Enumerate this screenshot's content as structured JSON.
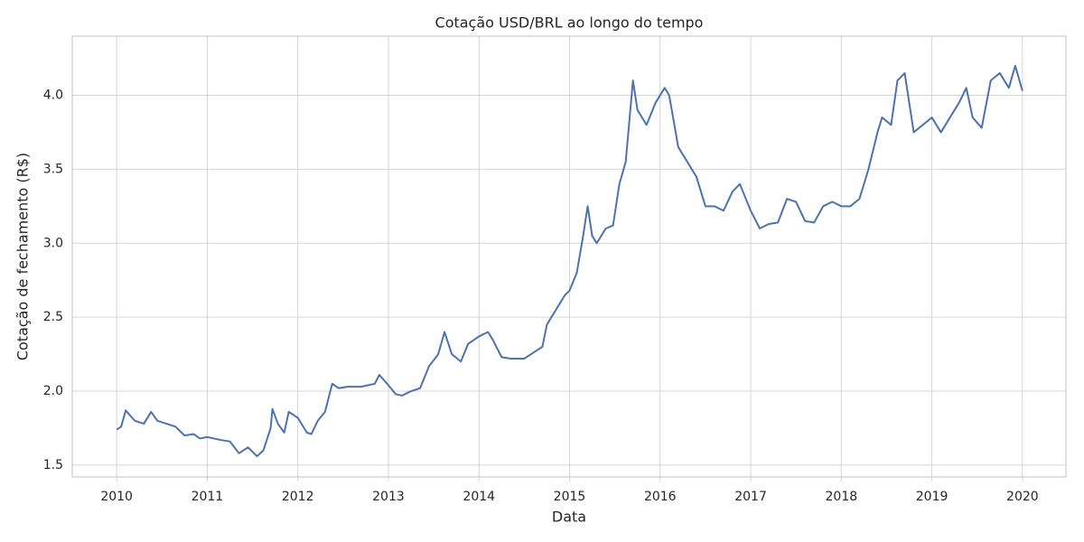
{
  "chart_data": {
    "type": "line",
    "title": "Cotação USD/BRL ao longo do tempo",
    "x_label": "Data",
    "y_label": "Cotação de fechamento (R$)",
    "xlim": [
      2009.51,
      2020.48
    ],
    "ylim": [
      1.42,
      4.4
    ],
    "xticks": [
      2010,
      2011,
      2012,
      2013,
      2014,
      2015,
      2016,
      2017,
      2018,
      2019,
      2020
    ],
    "yticks": [
      {
        "value": 1.5,
        "label": "1.5"
      },
      {
        "value": 2.0,
        "label": "2.0"
      },
      {
        "value": 2.5,
        "label": "2.5"
      },
      {
        "value": 3.0,
        "label": "3.0"
      },
      {
        "value": 3.5,
        "label": "3.5"
      },
      {
        "value": 4.0,
        "label": "4.0"
      }
    ],
    "grid": true,
    "series": [
      {
        "color": "#4c72b0",
        "x": [
          2010.0,
          2010.05,
          2010.1,
          2010.2,
          2010.3,
          2010.38,
          2010.45,
          2010.55,
          2010.65,
          2010.75,
          2010.85,
          2010.92,
          2011.0,
          2011.15,
          2011.25,
          2011.3,
          2011.35,
          2011.45,
          2011.55,
          2011.62,
          2011.7,
          2011.72,
          2011.78,
          2011.85,
          2011.9,
          2012.0,
          2012.1,
          2012.15,
          2012.22,
          2012.3,
          2012.38,
          2012.45,
          2012.55,
          2012.7,
          2012.85,
          2012.9,
          2013.0,
          2013.08,
          2013.15,
          2013.25,
          2013.35,
          2013.45,
          2013.55,
          2013.62,
          2013.7,
          2013.8,
          2013.88,
          2014.0,
          2014.1,
          2014.15,
          2014.25,
          2014.35,
          2014.5,
          2014.6,
          2014.7,
          2014.75,
          2014.85,
          2014.95,
          2015.0,
          2015.08,
          2015.15,
          2015.2,
          2015.25,
          2015.3,
          2015.4,
          2015.48,
          2015.55,
          2015.62,
          2015.7,
          2015.75,
          2015.85,
          2015.95,
          2016.05,
          2016.1,
          2016.2,
          2016.3,
          2016.4,
          2016.5,
          2016.6,
          2016.7,
          2016.8,
          2016.88,
          2017.0,
          2017.1,
          2017.2,
          2017.3,
          2017.4,
          2017.5,
          2017.6,
          2017.7,
          2017.8,
          2017.9,
          2018.0,
          2018.1,
          2018.2,
          2018.3,
          2018.4,
          2018.45,
          2018.55,
          2018.62,
          2018.7,
          2018.8,
          2018.9,
          2019.0,
          2019.1,
          2019.2,
          2019.3,
          2019.38,
          2019.45,
          2019.55,
          2019.65,
          2019.75,
          2019.85,
          2019.92,
          2020.0
        ],
        "values": [
          1.74,
          1.76,
          1.87,
          1.8,
          1.78,
          1.86,
          1.8,
          1.78,
          1.76,
          1.7,
          1.71,
          1.68,
          1.69,
          1.67,
          1.66,
          1.62,
          1.58,
          1.62,
          1.56,
          1.6,
          1.75,
          1.88,
          1.78,
          1.72,
          1.86,
          1.82,
          1.72,
          1.71,
          1.8,
          1.86,
          2.05,
          2.02,
          2.03,
          2.03,
          2.05,
          2.11,
          2.04,
          1.98,
          1.97,
          2.0,
          2.02,
          2.17,
          2.25,
          2.4,
          2.25,
          2.2,
          2.32,
          2.37,
          2.4,
          2.35,
          2.23,
          2.22,
          2.22,
          2.26,
          2.3,
          2.45,
          2.55,
          2.65,
          2.68,
          2.8,
          3.05,
          3.25,
          3.05,
          3.0,
          3.1,
          3.12,
          3.4,
          3.55,
          4.1,
          3.9,
          3.8,
          3.95,
          4.05,
          4.0,
          3.65,
          3.55,
          3.45,
          3.25,
          3.25,
          3.22,
          3.35,
          3.4,
          3.22,
          3.1,
          3.13,
          3.14,
          3.3,
          3.28,
          3.15,
          3.14,
          3.25,
          3.28,
          3.25,
          3.25,
          3.3,
          3.5,
          3.75,
          3.85,
          3.8,
          4.1,
          4.15,
          3.75,
          3.8,
          3.85,
          3.75,
          3.85,
          3.95,
          4.05,
          3.85,
          3.78,
          4.1,
          4.15,
          4.05,
          4.2,
          4.03
        ]
      }
    ]
  }
}
